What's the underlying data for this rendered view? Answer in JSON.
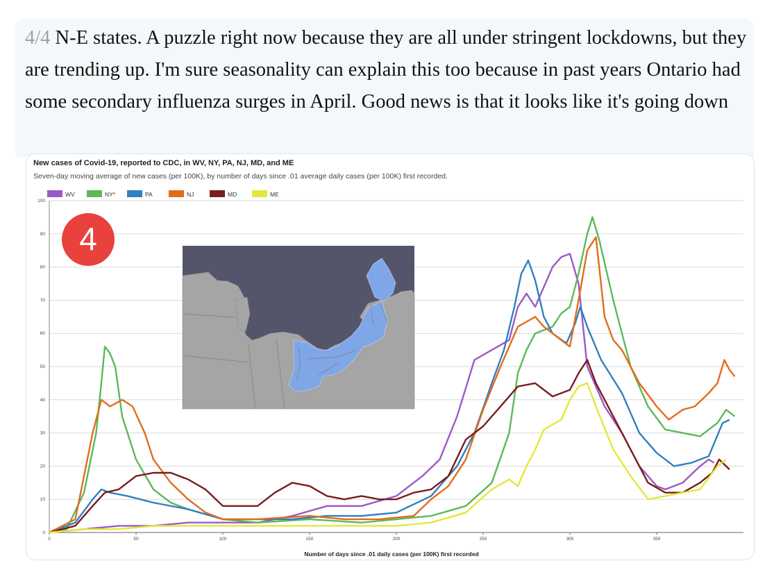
{
  "tweet": {
    "thread_number": "4/4",
    "text": " N-E states. A puzzle right now because they are all under stringent lockdowns, but they are trending up. I'm sure seasonality can explain this too because in past years Ontario had some secondary influenza surges in April. Good news is that it looks like it's going down"
  },
  "badge": {
    "label": "4",
    "color": "#e8413e"
  },
  "map": {
    "water_color": "#54546a",
    "land_color": "#a5a5a5",
    "highlight_color": "#7fa6e6"
  },
  "chart_data": {
    "type": "line",
    "title": "New cases of Covid-19, reported to CDC, in WV, NY, PA, NJ, MD, and ME",
    "subtitle": "Seven-day moving average of new cases (per 100K), by number of days since .01 average daily cases (per 100K) first recorded.",
    "xlabel": "Number of days since .01 daily cases (per 100K) first recorded",
    "ylabel": "",
    "xlim": [
      0,
      400
    ],
    "ylim": [
      0,
      100
    ],
    "x_ticks": [
      0,
      50,
      100,
      150,
      200,
      250,
      300,
      350
    ],
    "y_ticks": [
      0,
      10,
      20,
      30,
      40,
      50,
      60,
      70,
      80,
      90,
      100
    ],
    "legend_position": "top-left",
    "grid": true,
    "series": [
      {
        "name": "WV",
        "color": "#9b59c6",
        "points": [
          [
            0,
            0
          ],
          [
            20,
            1
          ],
          [
            40,
            2
          ],
          [
            60,
            2
          ],
          [
            80,
            3
          ],
          [
            100,
            3
          ],
          [
            120,
            3
          ],
          [
            140,
            5
          ],
          [
            160,
            8
          ],
          [
            180,
            8
          ],
          [
            200,
            11
          ],
          [
            215,
            17
          ],
          [
            225,
            22
          ],
          [
            235,
            35
          ],
          [
            245,
            52
          ],
          [
            255,
            55
          ],
          [
            265,
            58
          ],
          [
            270,
            68
          ],
          [
            275,
            72
          ],
          [
            280,
            68
          ],
          [
            290,
            80
          ],
          [
            295,
            83
          ],
          [
            300,
            84
          ],
          [
            305,
            75
          ],
          [
            310,
            50
          ],
          [
            320,
            38
          ],
          [
            330,
            30
          ],
          [
            340,
            20
          ],
          [
            350,
            14
          ],
          [
            355,
            13
          ],
          [
            365,
            15
          ],
          [
            375,
            20
          ],
          [
            380,
            22
          ],
          [
            383,
            21
          ]
        ]
      },
      {
        "name": "NY*",
        "color": "#5cb85c",
        "points": [
          [
            0,
            0
          ],
          [
            10,
            1
          ],
          [
            20,
            12
          ],
          [
            27,
            30
          ],
          [
            30,
            45
          ],
          [
            32,
            56
          ],
          [
            35,
            54
          ],
          [
            38,
            50
          ],
          [
            42,
            35
          ],
          [
            50,
            22
          ],
          [
            60,
            13
          ],
          [
            70,
            9
          ],
          [
            80,
            7
          ],
          [
            100,
            4
          ],
          [
            120,
            3
          ],
          [
            150,
            4
          ],
          [
            180,
            3
          ],
          [
            200,
            4
          ],
          [
            220,
            5
          ],
          [
            240,
            8
          ],
          [
            255,
            15
          ],
          [
            265,
            30
          ],
          [
            270,
            48
          ],
          [
            275,
            55
          ],
          [
            280,
            60
          ],
          [
            290,
            62
          ],
          [
            295,
            66
          ],
          [
            300,
            68
          ],
          [
            305,
            78
          ],
          [
            310,
            90
          ],
          [
            313,
            95
          ],
          [
            317,
            88
          ],
          [
            325,
            70
          ],
          [
            335,
            50
          ],
          [
            345,
            38
          ],
          [
            355,
            31
          ],
          [
            365,
            30
          ],
          [
            375,
            29
          ],
          [
            385,
            33
          ],
          [
            390,
            37
          ],
          [
            395,
            35
          ]
        ]
      },
      {
        "name": "PA",
        "color": "#2f7fc1",
        "points": [
          [
            0,
            0
          ],
          [
            15,
            3
          ],
          [
            25,
            10
          ],
          [
            30,
            13
          ],
          [
            35,
            12
          ],
          [
            45,
            11
          ],
          [
            60,
            9
          ],
          [
            80,
            7
          ],
          [
            100,
            4
          ],
          [
            120,
            4
          ],
          [
            140,
            4
          ],
          [
            160,
            5
          ],
          [
            180,
            5
          ],
          [
            200,
            6
          ],
          [
            220,
            11
          ],
          [
            235,
            20
          ],
          [
            245,
            30
          ],
          [
            255,
            45
          ],
          [
            262,
            55
          ],
          [
            268,
            68
          ],
          [
            272,
            78
          ],
          [
            276,
            82
          ],
          [
            280,
            76
          ],
          [
            285,
            65
          ],
          [
            290,
            60
          ],
          [
            298,
            57
          ],
          [
            303,
            63
          ],
          [
            306,
            68
          ],
          [
            310,
            62
          ],
          [
            318,
            52
          ],
          [
            330,
            42
          ],
          [
            340,
            30
          ],
          [
            350,
            24
          ],
          [
            360,
            20
          ],
          [
            370,
            21
          ],
          [
            380,
            23
          ],
          [
            388,
            33
          ],
          [
            392,
            34
          ]
        ]
      },
      {
        "name": "NJ",
        "color": "#e36c1a",
        "points": [
          [
            0,
            0
          ],
          [
            15,
            4
          ],
          [
            25,
            30
          ],
          [
            30,
            40
          ],
          [
            35,
            38
          ],
          [
            42,
            40
          ],
          [
            48,
            38
          ],
          [
            55,
            30
          ],
          [
            60,
            22
          ],
          [
            70,
            15
          ],
          [
            80,
            10
          ],
          [
            90,
            6
          ],
          [
            100,
            4
          ],
          [
            120,
            4
          ],
          [
            150,
            5
          ],
          [
            170,
            4
          ],
          [
            190,
            4
          ],
          [
            210,
            5
          ],
          [
            220,
            10
          ],
          [
            230,
            14
          ],
          [
            240,
            22
          ],
          [
            250,
            37
          ],
          [
            260,
            50
          ],
          [
            270,
            62
          ],
          [
            280,
            65
          ],
          [
            285,
            62
          ],
          [
            295,
            58
          ],
          [
            300,
            56
          ],
          [
            305,
            70
          ],
          [
            310,
            85
          ],
          [
            315,
            89
          ],
          [
            320,
            65
          ],
          [
            325,
            58
          ],
          [
            330,
            55
          ],
          [
            340,
            45
          ],
          [
            350,
            38
          ],
          [
            357,
            34
          ],
          [
            365,
            37
          ],
          [
            372,
            38
          ],
          [
            380,
            42
          ],
          [
            385,
            45
          ],
          [
            389,
            52
          ],
          [
            392,
            49
          ],
          [
            395,
            47
          ]
        ]
      },
      {
        "name": "MD",
        "color": "#7b1c1c",
        "points": [
          [
            0,
            0
          ],
          [
            15,
            2
          ],
          [
            25,
            8
          ],
          [
            32,
            12
          ],
          [
            40,
            13
          ],
          [
            50,
            17
          ],
          [
            60,
            18
          ],
          [
            70,
            18
          ],
          [
            80,
            16
          ],
          [
            90,
            13
          ],
          [
            100,
            8
          ],
          [
            120,
            8
          ],
          [
            130,
            12
          ],
          [
            140,
            15
          ],
          [
            150,
            14
          ],
          [
            160,
            11
          ],
          [
            170,
            10
          ],
          [
            180,
            11
          ],
          [
            190,
            10
          ],
          [
            200,
            10
          ],
          [
            210,
            12
          ],
          [
            220,
            13
          ],
          [
            230,
            17
          ],
          [
            240,
            28
          ],
          [
            250,
            32
          ],
          [
            260,
            38
          ],
          [
            270,
            44
          ],
          [
            280,
            45
          ],
          [
            290,
            41
          ],
          [
            300,
            43
          ],
          [
            305,
            48
          ],
          [
            310,
            52
          ],
          [
            315,
            45
          ],
          [
            325,
            35
          ],
          [
            335,
            25
          ],
          [
            345,
            15
          ],
          [
            355,
            12
          ],
          [
            365,
            12
          ],
          [
            375,
            15
          ],
          [
            382,
            18
          ],
          [
            386,
            22
          ],
          [
            388,
            21
          ],
          [
            392,
            19
          ]
        ]
      },
      {
        "name": "ME",
        "color": "#e3e83a",
        "points": [
          [
            0,
            0
          ],
          [
            20,
            1
          ],
          [
            40,
            1
          ],
          [
            60,
            2
          ],
          [
            80,
            2
          ],
          [
            100,
            2
          ],
          [
            120,
            2
          ],
          [
            150,
            2
          ],
          [
            180,
            2
          ],
          [
            200,
            2
          ],
          [
            220,
            3
          ],
          [
            240,
            6
          ],
          [
            255,
            13
          ],
          [
            265,
            16
          ],
          [
            270,
            14
          ],
          [
            275,
            20
          ],
          [
            280,
            25
          ],
          [
            285,
            31
          ],
          [
            295,
            34
          ],
          [
            300,
            40
          ],
          [
            305,
            44
          ],
          [
            310,
            45
          ],
          [
            315,
            38
          ],
          [
            325,
            25
          ],
          [
            335,
            17
          ],
          [
            345,
            10
          ],
          [
            355,
            11
          ],
          [
            365,
            12
          ],
          [
            375,
            13
          ],
          [
            385,
            20
          ],
          [
            390,
            22
          ]
        ]
      }
    ]
  }
}
